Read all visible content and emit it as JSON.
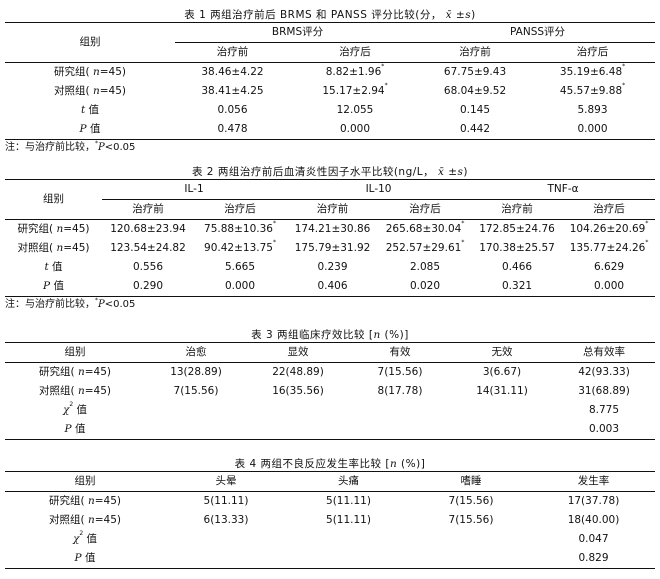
{
  "tables": [
    {
      "title": [
        {
          "t": "表 1  两组治疗前后 BRMS 和 PANSS 评分比较(分， "
        },
        {
          "t": "x̄",
          "i": true
        },
        {
          "t": " ±"
        },
        {
          "t": "s",
          "i": true
        },
        {
          "t": ")"
        }
      ],
      "cols": [
        170,
        115,
        130,
        110,
        125
      ],
      "header_groups": [
        {
          "t": "BRMS评分",
          "span": 2
        },
        {
          "t": "PANSS评分",
          "span": 2
        }
      ],
      "group_header": "组别",
      "subheaders": [
        "治疗前",
        "治疗后",
        "治疗前",
        "治疗后"
      ],
      "rows": [
        {
          "label": [
            {
              "t": "研究组( "
            },
            {
              "t": "n",
              "i": true
            },
            {
              "t": "=45)"
            }
          ],
          "cells": [
            {
              "v": "38.46±4.22"
            },
            {
              "v": "8.82±1.96",
              "sup": "*"
            },
            {
              "v": "67.75±9.43"
            },
            {
              "v": "35.19±6.48",
              "sup": "*"
            }
          ]
        },
        {
          "label": [
            {
              "t": "对照组( "
            },
            {
              "t": "n",
              "i": true
            },
            {
              "t": "=45)"
            }
          ],
          "cells": [
            {
              "v": "38.41±4.25"
            },
            {
              "v": "15.17±2.94",
              "sup": "*"
            },
            {
              "v": "68.04±9.52"
            },
            {
              "v": "45.57±9.88",
              "sup": "*"
            }
          ]
        },
        {
          "label": [
            {
              "t": "t",
              "i": true
            },
            {
              "t": " 值"
            }
          ],
          "cells": [
            {
              "v": "0.056"
            },
            {
              "v": "12.055"
            },
            {
              "v": "0.145"
            },
            {
              "v": "5.893"
            }
          ]
        },
        {
          "label": [
            {
              "t": "P",
              "i": true
            },
            {
              "t": " 值"
            }
          ],
          "cells": [
            {
              "v": "0.478"
            },
            {
              "v": "0.000"
            },
            {
              "v": "0.442"
            },
            {
              "v": "0.000"
            }
          ]
        }
      ],
      "note": [
        {
          "t": "注：与治疗前比较，"
        },
        {
          "t": "*",
          "sup": true
        },
        {
          "t": "P",
          "i": true
        },
        {
          "t": "<0.05"
        }
      ]
    },
    {
      "title": [
        {
          "t": "表 2  两组治疗前后血清炎性因子水平比较(ng/L， "
        },
        {
          "t": "x̄",
          "i": true
        },
        {
          "t": " ±"
        },
        {
          "t": "s",
          "i": true
        },
        {
          "t": ")"
        }
      ],
      "cols": [
        97,
        92,
        92,
        93,
        92,
        92,
        92
      ],
      "header_groups": [
        {
          "t": "IL-1",
          "span": 2
        },
        {
          "t": "IL-10",
          "span": 2
        },
        {
          "t": "TNF-α",
          "span": 2
        }
      ],
      "group_header": "组别",
      "subheaders": [
        "治疗前",
        "治疗后",
        "治疗前",
        "治疗后",
        "治疗前",
        "治疗后"
      ],
      "rows": [
        {
          "label": [
            {
              "t": "研究组( "
            },
            {
              "t": "n",
              "i": true
            },
            {
              "t": "=45)"
            }
          ],
          "cells": [
            {
              "v": "120.68±23.94"
            },
            {
              "v": "75.88±10.36",
              "sup": "*"
            },
            {
              "v": "174.21±30.86"
            },
            {
              "v": "265.68±30.04",
              "sup": "*"
            },
            {
              "v": "172.85±24.76"
            },
            {
              "v": "104.26±20.69",
              "sup": "*"
            }
          ]
        },
        {
          "label": [
            {
              "t": "对照组( "
            },
            {
              "t": "n",
              "i": true
            },
            {
              "t": "=45)"
            }
          ],
          "cells": [
            {
              "v": "123.54±24.82"
            },
            {
              "v": "90.42±13.75",
              "sup": "*"
            },
            {
              "v": "175.79±31.92"
            },
            {
              "v": "252.57±29.61",
              "sup": "*"
            },
            {
              "v": "170.38±25.57"
            },
            {
              "v": "135.77±24.26",
              "sup": "*"
            }
          ]
        },
        {
          "label": [
            {
              "t": "t",
              "i": true
            },
            {
              "t": " 值"
            }
          ],
          "cells": [
            {
              "v": "0.556"
            },
            {
              "v": "5.665"
            },
            {
              "v": "0.239"
            },
            {
              "v": "2.085"
            },
            {
              "v": "0.466"
            },
            {
              "v": "6.629"
            }
          ]
        },
        {
          "label": [
            {
              "t": "P",
              "i": true
            },
            {
              "t": " 值"
            }
          ],
          "cells": [
            {
              "v": "0.290"
            },
            {
              "v": "0.000"
            },
            {
              "v": "0.406"
            },
            {
              "v": "0.020"
            },
            {
              "v": "0.321"
            },
            {
              "v": "0.000"
            }
          ]
        }
      ],
      "note": [
        {
          "t": "注：与治疗前比较，"
        },
        {
          "t": "*",
          "sup": true
        },
        {
          "t": "P",
          "i": true
        },
        {
          "t": "<0.05"
        }
      ]
    },
    {
      "title": [
        {
          "t": "表 3  两组临床疗效比较 ["
        },
        {
          "t": "n",
          "i": true
        },
        {
          "t": " (%)]"
        }
      ],
      "cols": [
        140,
        102,
        102,
        102,
        102,
        102
      ],
      "group_header": "组别",
      "subheaders": [
        "治愈",
        "显效",
        "有效",
        "无效",
        "总有效率"
      ],
      "rows": [
        {
          "label": [
            {
              "t": "研究组( "
            },
            {
              "t": "n",
              "i": true
            },
            {
              "t": "=45)"
            }
          ],
          "cells": [
            {
              "v": "13(28.89)"
            },
            {
              "v": "22(48.89)"
            },
            {
              "v": "7(15.56)"
            },
            {
              "v": "3(6.67)"
            },
            {
              "v": "42(93.33)"
            }
          ]
        },
        {
          "label": [
            {
              "t": "对照组( "
            },
            {
              "t": "n",
              "i": true
            },
            {
              "t": "=45)"
            }
          ],
          "cells": [
            {
              "v": "7(15.56)"
            },
            {
              "v": "16(35.56)"
            },
            {
              "v": "8(17.78)"
            },
            {
              "v": "14(31.11)"
            },
            {
              "v": "31(68.89)"
            }
          ]
        },
        {
          "label": [
            {
              "t": "χ",
              "i": true
            },
            {
              "t": "2",
              "sup": true
            },
            {
              "t": " 值"
            }
          ],
          "cells": [
            {
              "v": ""
            },
            {
              "v": ""
            },
            {
              "v": ""
            },
            {
              "v": ""
            },
            {
              "v": "8.775"
            }
          ]
        },
        {
          "label": [
            {
              "t": "P",
              "i": true
            },
            {
              "t": " 值"
            }
          ],
          "cells": [
            {
              "v": ""
            },
            {
              "v": ""
            },
            {
              "v": ""
            },
            {
              "v": ""
            },
            {
              "v": "0.003"
            }
          ]
        }
      ]
    },
    {
      "title": [
        {
          "t": "表 4  两组不良反应发生率比较 ["
        },
        {
          "t": "n",
          "i": true
        },
        {
          "t": " (%)]"
        }
      ],
      "cols": [
        160,
        122,
        123,
        122,
        123
      ],
      "group_header": "组别",
      "subheaders": [
        "头晕",
        "头痛",
        "嗜睡",
        "发生率"
      ],
      "rows": [
        {
          "label": [
            {
              "t": "研究组( "
            },
            {
              "t": "n",
              "i": true
            },
            {
              "t": "=45)"
            }
          ],
          "cells": [
            {
              "v": "5(11.11)"
            },
            {
              "v": "5(11.11)"
            },
            {
              "v": "7(15.56)"
            },
            {
              "v": "17(37.78)"
            }
          ]
        },
        {
          "label": [
            {
              "t": "对照组( "
            },
            {
              "t": "n",
              "i": true
            },
            {
              "t": "=45)"
            }
          ],
          "cells": [
            {
              "v": "6(13.33)"
            },
            {
              "v": "5(11.11)"
            },
            {
              "v": "7(15.56)"
            },
            {
              "v": "18(40.00)"
            }
          ]
        },
        {
          "label": [
            {
              "t": "χ",
              "i": true
            },
            {
              "t": "2",
              "sup": true
            },
            {
              "t": " 值"
            }
          ],
          "cells": [
            {
              "v": ""
            },
            {
              "v": ""
            },
            {
              "v": ""
            },
            {
              "v": "0.047"
            }
          ]
        },
        {
          "label": [
            {
              "t": "P",
              "i": true
            },
            {
              "t": " 值"
            }
          ],
          "cells": [
            {
              "v": ""
            },
            {
              "v": ""
            },
            {
              "v": ""
            },
            {
              "v": "0.829"
            }
          ]
        }
      ]
    }
  ]
}
